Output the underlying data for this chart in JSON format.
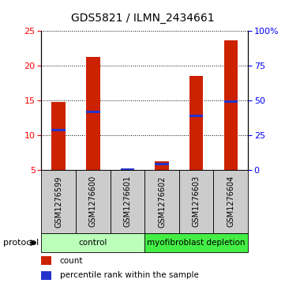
{
  "title": "GDS5821 / ILMN_2434661",
  "samples": [
    "GSM1276599",
    "GSM1276600",
    "GSM1276601",
    "GSM1276602",
    "GSM1276603",
    "GSM1276604"
  ],
  "counts": [
    14.8,
    21.2,
    5.05,
    6.2,
    18.5,
    23.6
  ],
  "percentiles_left": [
    10.7,
    13.3,
    5.05,
    5.8,
    12.8,
    14.8
  ],
  "ylim_left": [
    5,
    25
  ],
  "ylim_right": [
    0,
    100
  ],
  "yticks_left": [
    5,
    10,
    15,
    20,
    25
  ],
  "yticks_right": [
    0,
    25,
    50,
    75,
    100
  ],
  "ytick_labels_right": [
    "0",
    "25",
    "50",
    "75",
    "100%"
  ],
  "bar_color": "#cc2200",
  "percentile_color": "#2233cc",
  "bar_width": 0.4,
  "groups": [
    {
      "label": "control",
      "start": 0,
      "end": 3,
      "color": "#bbffbb"
    },
    {
      "label": "myofibroblast depletion",
      "start": 3,
      "end": 6,
      "color": "#44ee44"
    }
  ],
  "legend_count_label": "count",
  "legend_percentile_label": "percentile rank within the sample",
  "protocol_label": "protocol",
  "sample_box_color": "#cccccc",
  "grid_dotted_color": "#222222"
}
